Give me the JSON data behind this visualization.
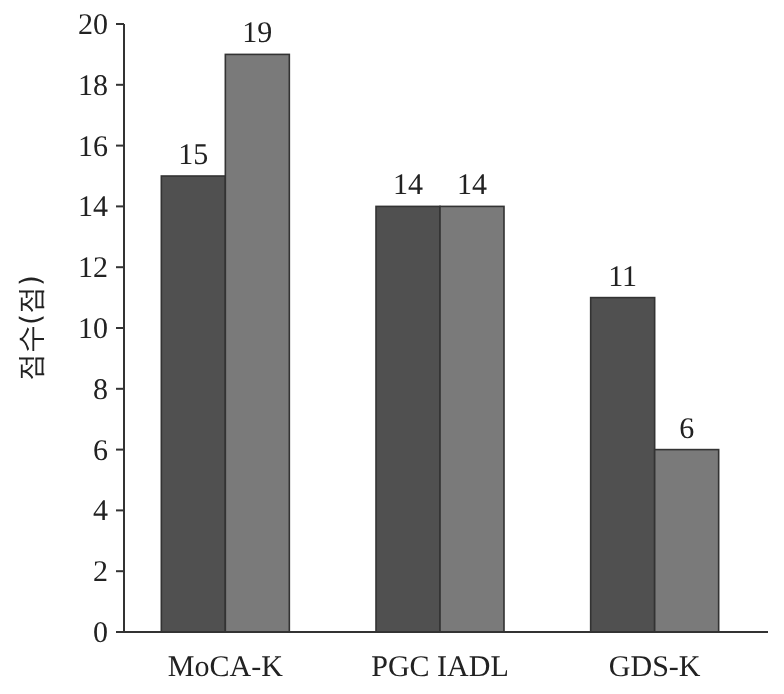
{
  "chart_data": {
    "type": "bar",
    "ylabel": "점수(점)",
    "categories": [
      "MoCA-K",
      "PGC IADL",
      "GDS-K"
    ],
    "series": [
      {
        "color": "#505050",
        "values": [
          15,
          14,
          11
        ]
      },
      {
        "color": "#7a7a7a",
        "values": [
          19,
          14,
          6
        ]
      }
    ],
    "ylim": [
      0,
      20
    ],
    "yticks": [
      0,
      2,
      4,
      6,
      8,
      10,
      12,
      14,
      16,
      18,
      20
    ],
    "data_labels": true,
    "grid": false
  }
}
